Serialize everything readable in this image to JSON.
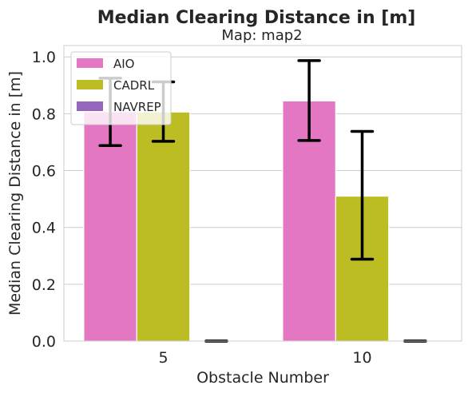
{
  "chart_data": {
    "type": "bar",
    "title": "Median Clearing Distance in [m]",
    "subtitle": "Map: map2",
    "xlabel": "Obstacle Number",
    "ylabel": "Median Clearing Distance in [m]",
    "categories": [
      "5",
      "10"
    ],
    "ylim": [
      0,
      1.04
    ],
    "yticks": [
      "0.0",
      "0.2",
      "0.4",
      "0.6",
      "0.8",
      "1.0"
    ],
    "grid": "horizontal",
    "legend_position": "top-left",
    "series": [
      {
        "name": "AIO",
        "color": "#e377c2",
        "values": [
          0.807,
          0.845
        ],
        "err_low": [
          0.688,
          0.706
        ],
        "err_high": [
          0.925,
          0.987
        ]
      },
      {
        "name": "CADRL",
        "color": "#bcbd22",
        "values": [
          0.806,
          0.51
        ],
        "err_low": [
          0.703,
          0.288
        ],
        "err_high": [
          0.912,
          0.738
        ]
      },
      {
        "name": "NAVREP",
        "color": "#9467bd",
        "values": [
          0.0,
          0.0
        ],
        "err_low": [
          0.0,
          0.0
        ],
        "err_high": [
          0.0,
          0.0
        ]
      }
    ]
  }
}
